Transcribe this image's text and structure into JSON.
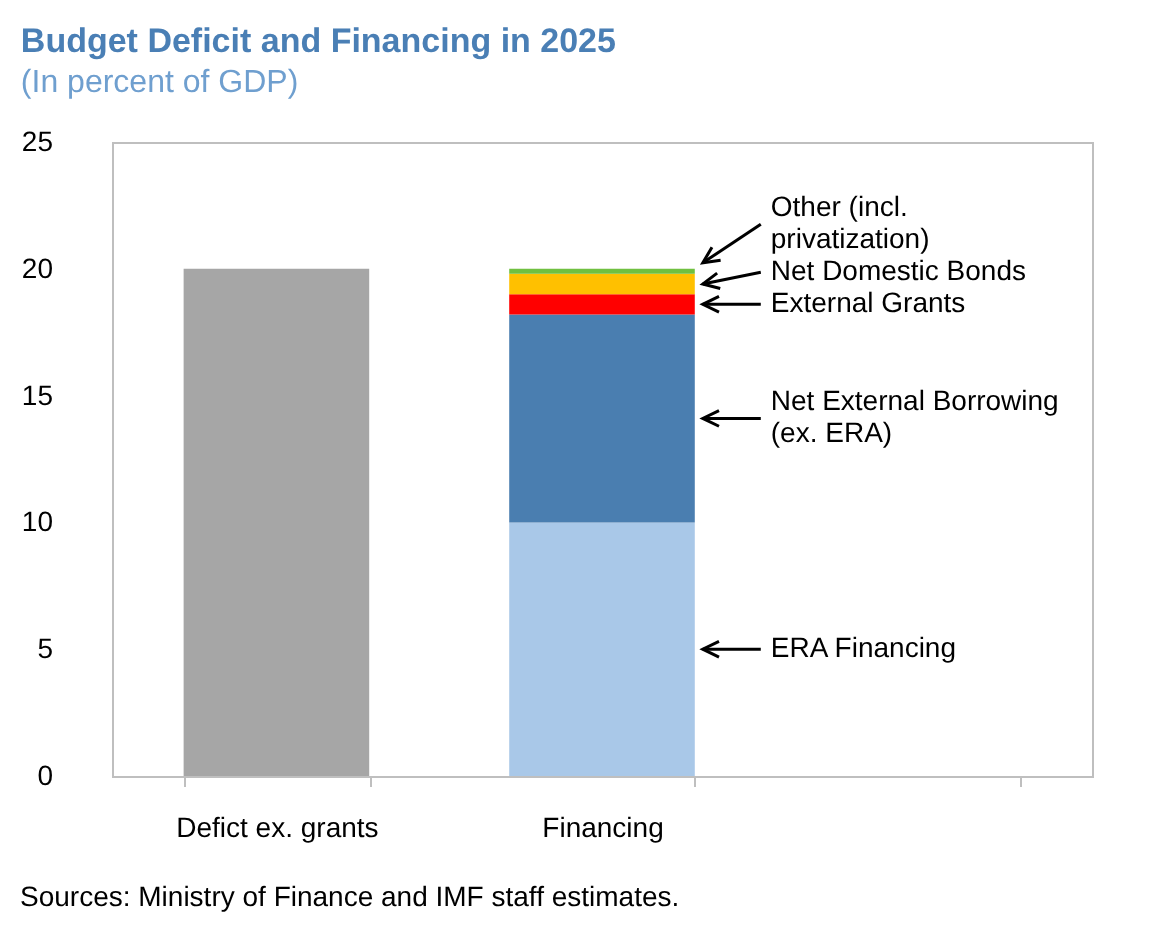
{
  "chart_data": {
    "type": "bar",
    "title": "Budget Deficit and Financing in 2025",
    "subtitle": "(In percent of GDP)",
    "categories": [
      "Defict ex. grants",
      "Financing",
      null
    ],
    "stacked": true,
    "series": [
      {
        "color": "#a6a6a6",
        "values": [
          20,
          null,
          null
        ]
      },
      {
        "name": "ERA Financing",
        "color": "#a9c8e8",
        "values": [
          null,
          10,
          null
        ]
      },
      {
        "name": "Net External Borrowing (ex. ERA)",
        "color": "#4a7eb0",
        "values": [
          null,
          8.2,
          null
        ]
      },
      {
        "name": "External Grants",
        "color": "#ff0000",
        "values": [
          null,
          0.8,
          null
        ]
      },
      {
        "name": "Net Domestic Bonds",
        "color": "#ffc000",
        "values": [
          null,
          0.8,
          null
        ]
      },
      {
        "name": "Other (incl. privatization)",
        "color": "#70c040",
        "values": [
          null,
          0.2,
          null
        ]
      }
    ],
    "ylim": [
      0,
      25
    ],
    "yticks": [
      0,
      5,
      10,
      15,
      20,
      25
    ],
    "grid": false,
    "legend": false,
    "annotations": [
      "Sources: Ministry of Finance and IMF staff estimates."
    ]
  }
}
